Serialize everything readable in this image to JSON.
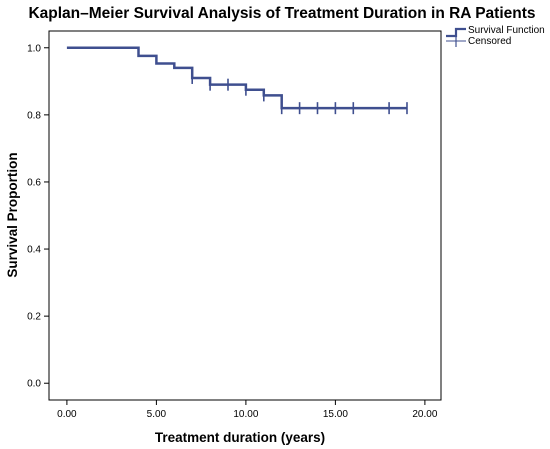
{
  "chart_data": {
    "type": "line",
    "title": "Kaplan–Meier Survival Analysis of Treatment Duration in RA Patients",
    "xlabel": "Treatment duration (years)",
    "ylabel": "Survival Proportion",
    "xlim": [
      -1.0,
      20.9
    ],
    "ylim": [
      -0.05,
      1.05
    ],
    "x_ticks": [
      0,
      5,
      10,
      15,
      20
    ],
    "x_tick_labels": [
      "0.00",
      "5.00",
      "10.00",
      "15.00",
      "20.00"
    ],
    "y_ticks": [
      0,
      0.2,
      0.4,
      0.6,
      0.8,
      1.0
    ],
    "y_tick_labels": [
      "0.0",
      "0.2",
      "0.4",
      "0.6",
      "0.8",
      "1.0"
    ],
    "grid": false,
    "legend_position": "top-right",
    "series": [
      {
        "name": "Survival Function",
        "color": "#3f4f8f",
        "step": [
          [
            0,
            1.0
          ],
          [
            4,
            0.976
          ],
          [
            5,
            0.953
          ],
          [
            6,
            0.94
          ],
          [
            7,
            0.91
          ],
          [
            8,
            0.89
          ],
          [
            10,
            0.875
          ],
          [
            11,
            0.858
          ],
          [
            12,
            0.82
          ],
          [
            19,
            0.82
          ]
        ]
      },
      {
        "name": "Censored",
        "color": "#3f4f8f",
        "points": [
          [
            7,
            0.91
          ],
          [
            8,
            0.89
          ],
          [
            9,
            0.89
          ],
          [
            10,
            0.875
          ],
          [
            11,
            0.858
          ],
          [
            12,
            0.82
          ],
          [
            13,
            0.82
          ],
          [
            14,
            0.82
          ],
          [
            15,
            0.82
          ],
          [
            16,
            0.82
          ],
          [
            18,
            0.82
          ],
          [
            19,
            0.82
          ]
        ]
      }
    ]
  }
}
